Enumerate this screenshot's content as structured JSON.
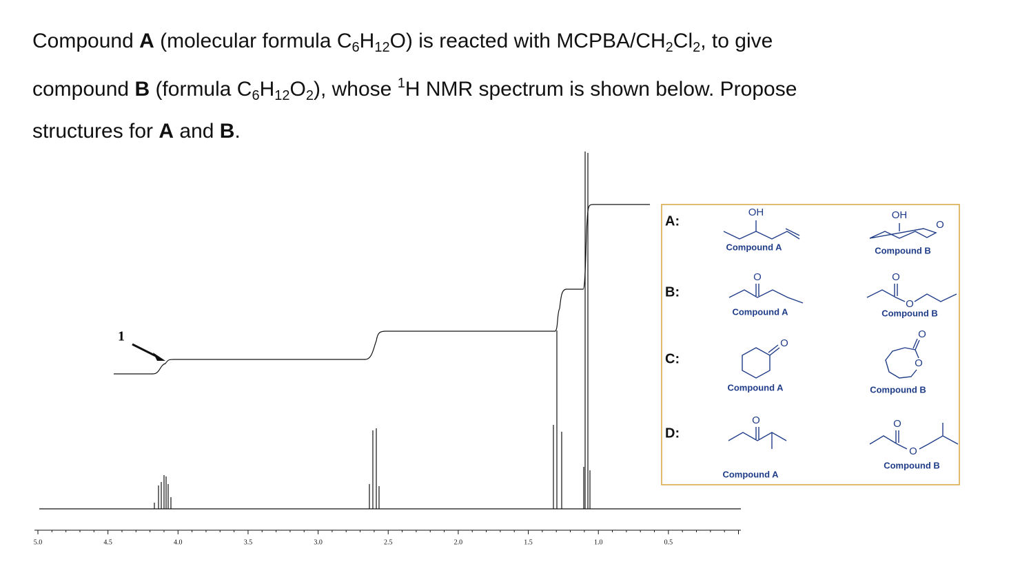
{
  "question": {
    "lines": [
      [
        {
          "text": "Compound "
        },
        {
          "text": "A",
          "style": "b"
        },
        {
          "text": " (molecular formula C"
        },
        {
          "text": "6",
          "style": "sub"
        },
        {
          "text": "H"
        },
        {
          "text": "12",
          "style": "sub"
        },
        {
          "text": "O) is reacted with MCPBA/CH"
        },
        {
          "text": "2",
          "style": "sub"
        },
        {
          "text": "Cl"
        },
        {
          "text": "2",
          "style": "sub"
        },
        {
          "text": ", to give"
        }
      ],
      [
        {
          "text": "compound "
        },
        {
          "text": "B",
          "style": "b"
        },
        {
          "text": " (formula C"
        },
        {
          "text": "6",
          "style": "sub"
        },
        {
          "text": "H"
        },
        {
          "text": "12",
          "style": "sub"
        },
        {
          "text": "O"
        },
        {
          "text": "2",
          "style": "sub"
        },
        {
          "text": "), whose "
        },
        {
          "text": "1",
          "style": "sup"
        },
        {
          "text": "H NMR spectrum is shown below. Propose"
        }
      ],
      [
        {
          "text": "structures for "
        },
        {
          "text": "A",
          "style": "b"
        },
        {
          "text": " and "
        },
        {
          "text": "B",
          "style": "b"
        },
        {
          "text": "."
        }
      ]
    ]
  },
  "spectrum": {
    "axis_ticks": [
      "5.0",
      "4.5",
      "4.0",
      "3.5",
      "3.0",
      "2.5",
      "2.0",
      "1.5",
      "1.0",
      "0.5"
    ],
    "annotation": "1"
  },
  "options": [
    {
      "letter": "A:",
      "a": {
        "label": "Compound A",
        "atoms": [
          "OH"
        ]
      },
      "b": {
        "label": "Compound B",
        "atoms": [
          "OH",
          "O"
        ]
      }
    },
    {
      "letter": "B:",
      "a": {
        "label": "Compound A",
        "atoms": [
          "O"
        ]
      },
      "b": {
        "label": "Compound B",
        "atoms": [
          "O",
          "O"
        ]
      }
    },
    {
      "letter": "C:",
      "a": {
        "label": "Compound A",
        "atoms": [
          "O"
        ]
      },
      "b": {
        "label": "Compound B",
        "atoms": [
          "O",
          "O"
        ]
      }
    },
    {
      "letter": "D:",
      "a": {
        "label": "Compound A",
        "atoms": [
          "O"
        ]
      },
      "b": {
        "label": "Compound B",
        "atoms": [
          "O",
          "O"
        ]
      }
    }
  ]
}
